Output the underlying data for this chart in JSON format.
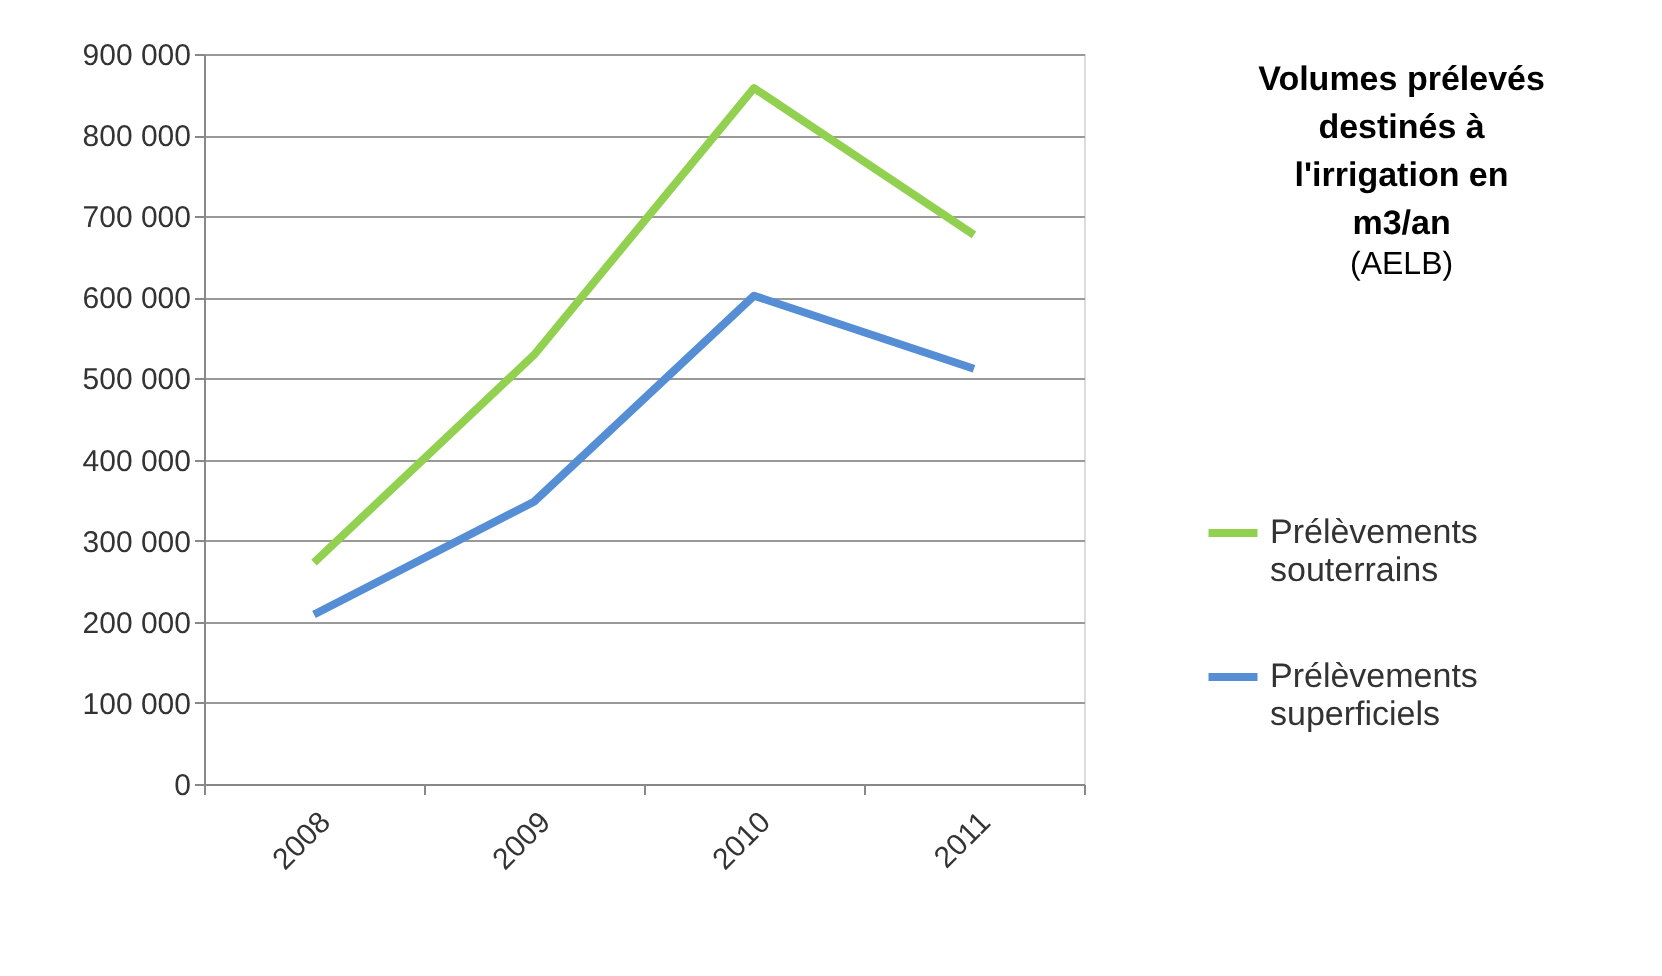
{
  "chart_data": {
    "type": "line",
    "title": [
      "Volumes prélevés",
      "destinés à",
      "l'irrigation en",
      "m3/an"
    ],
    "subtitle": "(AELB)",
    "categories": [
      "2008",
      "2009",
      "2010",
      "2011"
    ],
    "series": [
      {
        "name": "Prélèvements souterrains",
        "color": "#92d050",
        "values": [
          273000,
          529000,
          858000,
          677000
        ]
      },
      {
        "name": "Prélèvements superficiels",
        "color": "#558ed5",
        "values": [
          209000,
          348000,
          602000,
          512000
        ]
      }
    ],
    "ylim": [
      0,
      900000
    ],
    "yticks": [
      {
        "value": 0,
        "label": "0"
      },
      {
        "value": 100000,
        "label": "100 000"
      },
      {
        "value": 200000,
        "label": "200 000"
      },
      {
        "value": 300000,
        "label": "300 000"
      },
      {
        "value": 400000,
        "label": "400 000"
      },
      {
        "value": 500000,
        "label": "500 000"
      },
      {
        "value": 600000,
        "label": "600 000"
      },
      {
        "value": 700000,
        "label": "700 000"
      },
      {
        "value": 800000,
        "label": "800 000"
      },
      {
        "value": 900000,
        "label": "900 000"
      }
    ],
    "grid": "y",
    "legend": "right",
    "marker": "none",
    "line_style": "solid"
  }
}
